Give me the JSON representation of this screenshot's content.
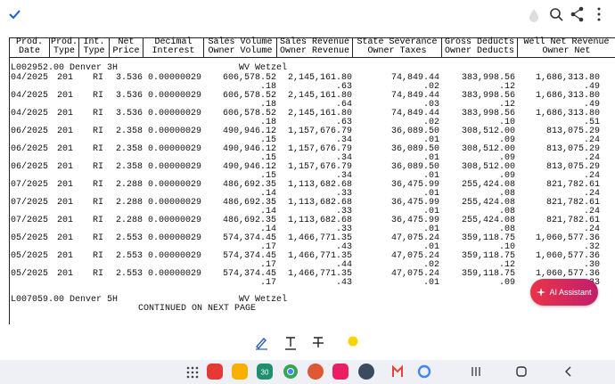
{
  "document": {
    "headers": [
      [
        "Prod.",
        "Date"
      ],
      [
        "Prod.",
        "Type"
      ],
      [
        "Int.",
        "Type"
      ],
      [
        "Net",
        "Price"
      ],
      [
        "Decimal",
        "Interest"
      ],
      [
        "Sales Volume",
        "Owner Volume"
      ],
      [
        "Sales Revenue",
        "Owner Revenue"
      ],
      [
        "State Severance",
        "Owner Taxes"
      ],
      [
        "Gross Deducts",
        "Owner Deducts"
      ],
      [
        "Well Net Revenue",
        "Owner Net"
      ]
    ],
    "group1": {
      "well": "L002952.00 Denver 3H",
      "county": "WV Wetzel"
    },
    "rows": [
      {
        "cells": [
          "04/2025",
          "201",
          "RI",
          "3.536",
          "0.00000029",
          "606,578.52",
          "2,145,161.80",
          "74,849.44",
          "383,998.56",
          "1,686,313.80"
        ],
        "fractions": [
          ".18",
          ".63",
          ".02",
          ".12",
          ".49"
        ]
      },
      {
        "cells": [
          "04/2025",
          "201",
          "RI",
          "3.536",
          "0.00000029",
          "606,578.52",
          "2,145,161.80",
          "74,849.44",
          "383,998.56",
          "1,686,313.80"
        ],
        "fractions": [
          ".18",
          ".64",
          ".03",
          ".12",
          ".49"
        ]
      },
      {
        "cells": [
          "04/2025",
          "201",
          "RI",
          "3.536",
          "0.00000029",
          "606,578.52",
          "2,145,161.80",
          "74,849.44",
          "383,998.56",
          "1,686,313.80"
        ],
        "fractions": [
          ".18",
          ".63",
          ".02",
          ".10",
          ".51"
        ]
      },
      {
        "cells": [
          "06/2025",
          "201",
          "RI",
          "2.358",
          "0.00000029",
          "490,946.12",
          "1,157,676.79",
          "36,089.50",
          "308,512.00",
          "813,075.29"
        ],
        "fractions": [
          ".15",
          ".34",
          ".01",
          ".09",
          ".24"
        ]
      },
      {
        "cells": [
          "06/2025",
          "201",
          "RI",
          "2.358",
          "0.00000029",
          "490,946.12",
          "1,157,676.79",
          "36,089.50",
          "308,512.00",
          "813,075.29"
        ],
        "fractions": [
          ".15",
          ".34",
          ".01",
          ".09",
          ".24"
        ]
      },
      {
        "cells": [
          "06/2025",
          "201",
          "RI",
          "2.358",
          "0.00000029",
          "490,946.12",
          "1,157,676.79",
          "36,089.50",
          "308,512.00",
          "813,075.29"
        ],
        "fractions": [
          ".15",
          ".34",
          ".01",
          ".09",
          ".24"
        ]
      },
      {
        "cells": [
          "07/2025",
          "201",
          "RI",
          "2.288",
          "0.00000029",
          "486,692.35",
          "1,113,682.68",
          "36,475.99",
          "255,424.08",
          "821,782.61"
        ],
        "fractions": [
          ".14",
          ".33",
          ".01",
          ".08",
          ".24"
        ]
      },
      {
        "cells": [
          "07/2025",
          "201",
          "RI",
          "2.288",
          "0.00000029",
          "486,692.35",
          "1,113,682.68",
          "36,475.99",
          "255,424.08",
          "821,782.61"
        ],
        "fractions": [
          ".14",
          ".33",
          ".01",
          ".08",
          ".24"
        ]
      },
      {
        "cells": [
          "07/2025",
          "201",
          "RI",
          "2.288",
          "0.00000029",
          "486,692.35",
          "1,113,682.68",
          "36,475.99",
          "255,424.08",
          "821,782.61"
        ],
        "fractions": [
          ".14",
          ".33",
          ".01",
          ".08",
          ".24"
        ]
      },
      {
        "cells": [
          "05/2025",
          "201",
          "RI",
          "2.553",
          "0.00000029",
          "574,374.45",
          "1,466,771.35",
          "47,075.24",
          "359,118.75",
          "1,060,577.36"
        ],
        "fractions": [
          ".17",
          ".43",
          ".01",
          ".10",
          ".32"
        ]
      },
      {
        "cells": [
          "05/2025",
          "201",
          "RI",
          "2.553",
          "0.00000029",
          "574,374.45",
          "1,466,771.35",
          "47,075.24",
          "359,118.75",
          "1,060,577.36"
        ],
        "fractions": [
          ".17",
          ".44",
          ".02",
          ".12",
          ".30"
        ]
      },
      {
        "cells": [
          "05/2025",
          "201",
          "RI",
          "2.553",
          "0.00000029",
          "574,374.45",
          "1,466,771.35",
          "47,075.24",
          "359,118.75",
          "1,060,577.36"
        ],
        "fractions": [
          ".17",
          ".43",
          ".01",
          ".09",
          ".33"
        ]
      }
    ],
    "group2": {
      "well": "L007059.00 Denver 5H",
      "county": "WV Wetzel"
    },
    "continued": "CONTINUED ON NEXT PAGE"
  },
  "ai_button": "AI Assistant",
  "calendar_day": "30"
}
